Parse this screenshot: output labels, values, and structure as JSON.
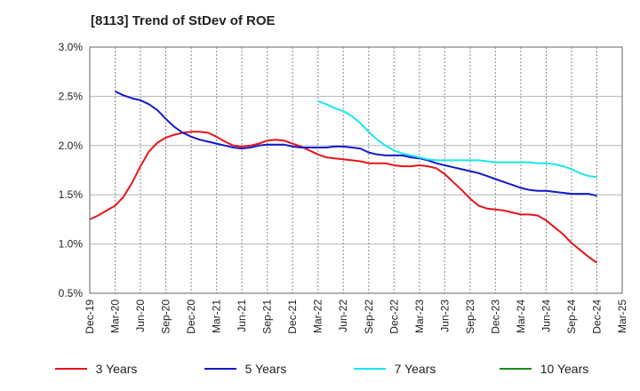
{
  "chart_data": {
    "type": "line",
    "title": "[8113]  Trend of StDev of ROE",
    "xlabel": "",
    "ylabel": "",
    "ylim": [
      0.5,
      3.0
    ],
    "y_ticks": [
      "0.5%",
      "1.0%",
      "1.5%",
      "2.0%",
      "2.5%",
      "3.0%"
    ],
    "x_ticks": [
      "Dec-19",
      "Mar-20",
      "Jun-20",
      "Sep-20",
      "Dec-20",
      "Mar-21",
      "Jun-21",
      "Sep-21",
      "Dec-21",
      "Mar-22",
      "Jun-22",
      "Sep-22",
      "Dec-22",
      "Mar-23",
      "Jun-23",
      "Sep-23",
      "Dec-23",
      "Mar-24",
      "Jun-24",
      "Sep-24",
      "Dec-24",
      "Mar-25"
    ],
    "grid": "vertical dashed, horizontal solid",
    "legend_position": "bottom",
    "series": [
      {
        "name": "3 Years",
        "color": "#e8131b",
        "points": [
          [
            "Dec-19",
            1.25
          ],
          [
            "Jan-20",
            1.29
          ],
          [
            "Feb-20",
            1.34
          ],
          [
            "Mar-20",
            1.39
          ],
          [
            "Apr-20",
            1.48
          ],
          [
            "May-20",
            1.62
          ],
          [
            "Jun-20",
            1.79
          ],
          [
            "Jul-20",
            1.94
          ],
          [
            "Aug-20",
            2.03
          ],
          [
            "Sep-20",
            2.08
          ],
          [
            "Oct-20",
            2.11
          ],
          [
            "Nov-20",
            2.13
          ],
          [
            "Dec-20",
            2.14
          ],
          [
            "Jan-21",
            2.14
          ],
          [
            "Feb-21",
            2.13
          ],
          [
            "Mar-21",
            2.09
          ],
          [
            "Apr-21",
            2.04
          ],
          [
            "May-21",
            2.0
          ],
          [
            "Jun-21",
            1.99
          ],
          [
            "Jul-21",
            2.0
          ],
          [
            "Aug-21",
            2.02
          ],
          [
            "Sep-21",
            2.05
          ],
          [
            "Oct-21",
            2.06
          ],
          [
            "Nov-21",
            2.05
          ],
          [
            "Dec-21",
            2.02
          ],
          [
            "Jan-22",
            1.99
          ],
          [
            "Feb-22",
            1.95
          ],
          [
            "Mar-22",
            1.91
          ],
          [
            "Apr-22",
            1.88
          ],
          [
            "May-22",
            1.87
          ],
          [
            "Jun-22",
            1.86
          ],
          [
            "Jul-22",
            1.85
          ],
          [
            "Aug-22",
            1.84
          ],
          [
            "Sep-22",
            1.82
          ],
          [
            "Oct-22",
            1.82
          ],
          [
            "Nov-22",
            1.82
          ],
          [
            "Dec-22",
            1.8
          ],
          [
            "Jan-23",
            1.79
          ],
          [
            "Feb-23",
            1.79
          ],
          [
            "Mar-23",
            1.8
          ],
          [
            "Apr-23",
            1.79
          ],
          [
            "May-23",
            1.77
          ],
          [
            "Jun-23",
            1.71
          ],
          [
            "Jul-23",
            1.63
          ],
          [
            "Aug-23",
            1.55
          ],
          [
            "Sep-23",
            1.46
          ],
          [
            "Oct-23",
            1.39
          ],
          [
            "Nov-23",
            1.36
          ],
          [
            "Dec-23",
            1.35
          ],
          [
            "Jan-24",
            1.34
          ],
          [
            "Feb-24",
            1.32
          ],
          [
            "Mar-24",
            1.3
          ],
          [
            "Apr-24",
            1.3
          ],
          [
            "May-24",
            1.29
          ],
          [
            "Jun-24",
            1.24
          ],
          [
            "Jul-24",
            1.17
          ],
          [
            "Aug-24",
            1.1
          ],
          [
            "Sep-24",
            1.01
          ],
          [
            "Oct-24",
            0.94
          ],
          [
            "Nov-24",
            0.87
          ],
          [
            "Dec-24",
            0.81
          ]
        ]
      },
      {
        "name": "5 Years",
        "color": "#1418c8",
        "points": [
          [
            "Mar-20",
            2.55
          ],
          [
            "Apr-20",
            2.51
          ],
          [
            "May-20",
            2.48
          ],
          [
            "Jun-20",
            2.46
          ],
          [
            "Jul-20",
            2.42
          ],
          [
            "Aug-20",
            2.36
          ],
          [
            "Sep-20",
            2.27
          ],
          [
            "Oct-20",
            2.19
          ],
          [
            "Nov-20",
            2.13
          ],
          [
            "Dec-20",
            2.09
          ],
          [
            "Jan-21",
            2.06
          ],
          [
            "Feb-21",
            2.04
          ],
          [
            "Mar-21",
            2.02
          ],
          [
            "Apr-21",
            2.0
          ],
          [
            "May-21",
            1.98
          ],
          [
            "Jun-21",
            1.97
          ],
          [
            "Jul-21",
            1.98
          ],
          [
            "Aug-21",
            2.0
          ],
          [
            "Sep-21",
            2.01
          ],
          [
            "Oct-21",
            2.01
          ],
          [
            "Nov-21",
            2.01
          ],
          [
            "Dec-21",
            1.99
          ],
          [
            "Jan-22",
            1.98
          ],
          [
            "Feb-22",
            1.98
          ],
          [
            "Mar-22",
            1.98
          ],
          [
            "Apr-22",
            1.98
          ],
          [
            "May-22",
            1.99
          ],
          [
            "Jun-22",
            1.99
          ],
          [
            "Jul-22",
            1.98
          ],
          [
            "Aug-22",
            1.97
          ],
          [
            "Sep-22",
            1.93
          ],
          [
            "Oct-22",
            1.91
          ],
          [
            "Nov-22",
            1.9
          ],
          [
            "Dec-22",
            1.9
          ],
          [
            "Jan-23",
            1.9
          ],
          [
            "Feb-23",
            1.88
          ],
          [
            "Mar-23",
            1.87
          ],
          [
            "Apr-23",
            1.85
          ],
          [
            "May-23",
            1.82
          ],
          [
            "Jun-23",
            1.8
          ],
          [
            "Jul-23",
            1.78
          ],
          [
            "Aug-23",
            1.76
          ],
          [
            "Sep-23",
            1.74
          ],
          [
            "Oct-23",
            1.72
          ],
          [
            "Nov-23",
            1.69
          ],
          [
            "Dec-23",
            1.66
          ],
          [
            "Jan-24",
            1.63
          ],
          [
            "Feb-24",
            1.6
          ],
          [
            "Mar-24",
            1.57
          ],
          [
            "Apr-24",
            1.55
          ],
          [
            "May-24",
            1.54
          ],
          [
            "Jun-24",
            1.54
          ],
          [
            "Jul-24",
            1.53
          ],
          [
            "Aug-24",
            1.52
          ],
          [
            "Sep-24",
            1.51
          ],
          [
            "Oct-24",
            1.51
          ],
          [
            "Nov-24",
            1.51
          ],
          [
            "Dec-24",
            1.49
          ]
        ]
      },
      {
        "name": "7 Years",
        "color": "#1ce6ee",
        "points": [
          [
            "Mar-22",
            2.45
          ],
          [
            "Apr-22",
            2.42
          ],
          [
            "May-22",
            2.38
          ],
          [
            "Jun-22",
            2.35
          ],
          [
            "Jul-22",
            2.3
          ],
          [
            "Aug-22",
            2.23
          ],
          [
            "Sep-22",
            2.14
          ],
          [
            "Oct-22",
            2.06
          ],
          [
            "Nov-22",
            2.0
          ],
          [
            "Dec-22",
            1.95
          ],
          [
            "Jan-23",
            1.92
          ],
          [
            "Feb-23",
            1.9
          ],
          [
            "Mar-23",
            1.88
          ],
          [
            "Apr-23",
            1.86
          ],
          [
            "May-23",
            1.85
          ],
          [
            "Jun-23",
            1.85
          ],
          [
            "Jul-23",
            1.85
          ],
          [
            "Aug-23",
            1.85
          ],
          [
            "Sep-23",
            1.85
          ],
          [
            "Oct-23",
            1.85
          ],
          [
            "Nov-23",
            1.84
          ],
          [
            "Dec-23",
            1.83
          ],
          [
            "Jan-24",
            1.83
          ],
          [
            "Feb-24",
            1.83
          ],
          [
            "Mar-24",
            1.83
          ],
          [
            "Apr-24",
            1.83
          ],
          [
            "May-24",
            1.82
          ],
          [
            "Jun-24",
            1.82
          ],
          [
            "Jul-24",
            1.81
          ],
          [
            "Aug-24",
            1.79
          ],
          [
            "Sep-24",
            1.76
          ],
          [
            "Oct-24",
            1.72
          ],
          [
            "Nov-24",
            1.69
          ],
          [
            "Dec-24",
            1.68
          ]
        ]
      },
      {
        "name": "10 Years",
        "color": "#1a8c1a",
        "points": []
      }
    ]
  }
}
